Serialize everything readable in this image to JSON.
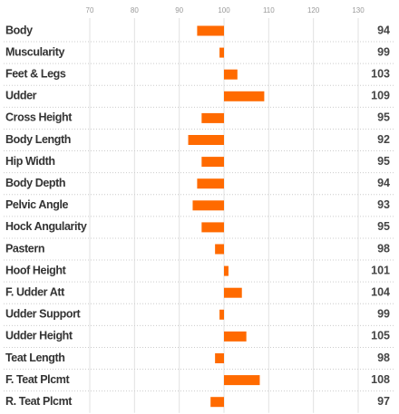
{
  "chart_data": {
    "type": "bar",
    "orientation": "horizontal",
    "categories": [
      "Body",
      "Muscularity",
      "Feet & Legs",
      "Udder",
      "Cross Height",
      "Body Length",
      "Hip Width",
      "Body Depth",
      "Pelvic Angle",
      "Hock Angularity",
      "Pastern",
      "Hoof Height",
      "F. Udder Att",
      "Udder Support",
      "Udder Height",
      "Teat Length",
      "F. Teat Plcmt",
      "R. Teat Plcmt"
    ],
    "values": [
      94,
      99,
      103,
      109,
      95,
      92,
      95,
      94,
      93,
      95,
      98,
      101,
      104,
      99,
      105,
      98,
      108,
      97
    ],
    "color": "#ff6a00",
    "bar_base": 100,
    "xlim": [
      70,
      130
    ],
    "xticks": [
      70,
      80,
      90,
      100,
      110,
      120,
      130
    ],
    "grid": true
  }
}
